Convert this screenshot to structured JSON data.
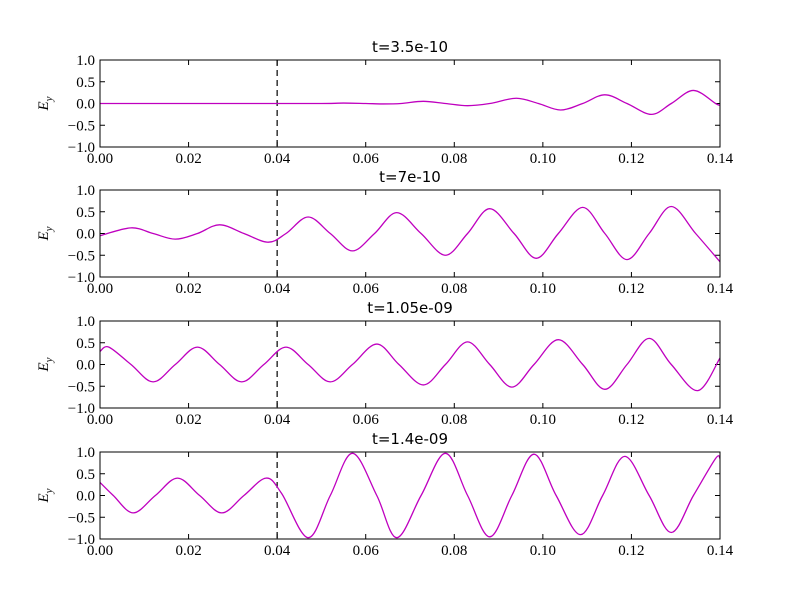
{
  "chart_data": [
    {
      "type": "line",
      "title": "t=3.5e-10",
      "ylabel": {
        "base": "E",
        "sub": "y"
      },
      "color": "#bf00bf",
      "vline": 0.04,
      "xlim": [
        0,
        0.14
      ],
      "ylim": [
        -1,
        1
      ],
      "xticks": [
        {
          "value": 0,
          "label": "0.00"
        },
        {
          "value": 0.02,
          "label": "0.02"
        },
        {
          "value": 0.04,
          "label": "0.04"
        },
        {
          "value": 0.06,
          "label": "0.06"
        },
        {
          "value": 0.08,
          "label": "0.08"
        },
        {
          "value": 0.1,
          "label": "0.10"
        },
        {
          "value": 0.12,
          "label": "0.12"
        },
        {
          "value": 0.14,
          "label": "0.14"
        }
      ],
      "yticks": [
        {
          "value": -1,
          "label": "−1.0"
        },
        {
          "value": -0.5,
          "label": "−0.5"
        },
        {
          "value": 0,
          "label": "0.0"
        },
        {
          "value": 0.5,
          "label": "0.5"
        },
        {
          "value": 1,
          "label": "1.0"
        }
      ],
      "x": [
        0,
        0.03,
        0.05,
        0.055,
        0.06,
        0.064,
        0.068,
        0.073,
        0.078,
        0.083,
        0.088,
        0.094,
        0.099,
        0.104,
        0.109,
        0.114,
        0.119,
        0.1245,
        0.129,
        0.134,
        0.139,
        0.14
      ],
      "values": [
        0,
        0,
        0,
        0.01,
        0,
        -0.01,
        0,
        0.05,
        0,
        -0.05,
        0,
        0.12,
        0,
        -0.15,
        0,
        0.2,
        0,
        -0.25,
        0,
        0.3,
        0,
        -0.04
      ]
    },
    {
      "type": "line",
      "title": "t=7e-10",
      "ylabel": {
        "base": "E",
        "sub": "y"
      },
      "color": "#bf00bf",
      "vline": 0.04,
      "xlim": [
        0,
        0.14
      ],
      "ylim": [
        -1,
        1
      ],
      "xticks": [
        {
          "value": 0,
          "label": "0.00"
        },
        {
          "value": 0.02,
          "label": "0.02"
        },
        {
          "value": 0.04,
          "label": "0.04"
        },
        {
          "value": 0.06,
          "label": "0.06"
        },
        {
          "value": 0.08,
          "label": "0.08"
        },
        {
          "value": 0.1,
          "label": "0.10"
        },
        {
          "value": 0.12,
          "label": "0.12"
        },
        {
          "value": 0.14,
          "label": "0.14"
        }
      ],
      "yticks": [
        {
          "value": -1,
          "label": "−1.0"
        },
        {
          "value": -0.5,
          "label": "−0.5"
        },
        {
          "value": 0,
          "label": "0.0"
        },
        {
          "value": 0.5,
          "label": "0.5"
        },
        {
          "value": 1,
          "label": "1.0"
        }
      ],
      "x": [
        0,
        0.007,
        0.012,
        0.017,
        0.022,
        0.027,
        0.0325,
        0.038,
        0.042,
        0.047,
        0.052,
        0.057,
        0.062,
        0.067,
        0.0725,
        0.078,
        0.083,
        0.088,
        0.0935,
        0.0985,
        0.1035,
        0.109,
        0.114,
        0.119,
        0.124,
        0.129,
        0.1345,
        0.14
      ],
      "values": [
        -0.05,
        0.13,
        0,
        -0.13,
        0,
        0.2,
        0,
        -0.2,
        0,
        0.38,
        0,
        -0.4,
        0,
        0.48,
        0,
        -0.5,
        0,
        0.57,
        0,
        -0.57,
        0,
        0.6,
        0,
        -0.6,
        0,
        0.62,
        0,
        -0.65
      ]
    },
    {
      "type": "line",
      "title": "t=1.05e-09",
      "ylabel": {
        "base": "E",
        "sub": "y"
      },
      "color": "#bf00bf",
      "vline": 0.04,
      "xlim": [
        0,
        0.14
      ],
      "ylim": [
        -1,
        1
      ],
      "xticks": [
        {
          "value": 0,
          "label": "0.00"
        },
        {
          "value": 0.02,
          "label": "0.02"
        },
        {
          "value": 0.04,
          "label": "0.04"
        },
        {
          "value": 0.06,
          "label": "0.06"
        },
        {
          "value": 0.08,
          "label": "0.08"
        },
        {
          "value": 0.1,
          "label": "0.10"
        },
        {
          "value": 0.12,
          "label": "0.12"
        },
        {
          "value": 0.14,
          "label": "0.14"
        }
      ],
      "yticks": [
        {
          "value": -1,
          "label": "−1.0"
        },
        {
          "value": -0.5,
          "label": "−0.5"
        },
        {
          "value": 0,
          "label": "0.0"
        },
        {
          "value": 0.5,
          "label": "0.5"
        },
        {
          "value": 1,
          "label": "1.0"
        }
      ],
      "x": [
        0,
        0.002,
        0.007,
        0.012,
        0.017,
        0.022,
        0.027,
        0.032,
        0.037,
        0.042,
        0.047,
        0.052,
        0.057,
        0.0625,
        0.0675,
        0.073,
        0.078,
        0.083,
        0.088,
        0.093,
        0.098,
        0.1035,
        0.109,
        0.114,
        0.119,
        0.124,
        0.129,
        0.135,
        0.14
      ],
      "values": [
        0.3,
        0.4,
        0,
        -0.4,
        0,
        0.4,
        0,
        -0.4,
        0,
        0.4,
        0,
        -0.4,
        0,
        0.47,
        0,
        -0.47,
        0,
        0.52,
        0,
        -0.52,
        0,
        0.57,
        0,
        -0.57,
        0,
        0.6,
        0,
        -0.6,
        0.15
      ]
    },
    {
      "type": "line",
      "title": "t=1.4e-09",
      "ylabel": {
        "base": "E",
        "sub": "y"
      },
      "color": "#bf00bf",
      "vline": 0.04,
      "xlim": [
        0,
        0.14
      ],
      "ylim": [
        -1,
        1
      ],
      "xticks": [
        {
          "value": 0,
          "label": "0.00"
        },
        {
          "value": 0.02,
          "label": "0.02"
        },
        {
          "value": 0.04,
          "label": "0.04"
        },
        {
          "value": 0.06,
          "label": "0.06"
        },
        {
          "value": 0.08,
          "label": "0.08"
        },
        {
          "value": 0.1,
          "label": "0.10"
        },
        {
          "value": 0.12,
          "label": "0.12"
        },
        {
          "value": 0.14,
          "label": "0.14"
        }
      ],
      "yticks": [
        {
          "value": -1,
          "label": "−1.0"
        },
        {
          "value": -0.5,
          "label": "−0.5"
        },
        {
          "value": 0,
          "label": "0.0"
        },
        {
          "value": 0.5,
          "label": "0.5"
        },
        {
          "value": 1,
          "label": "1.0"
        }
      ],
      "x": [
        0,
        0.003,
        0.0075,
        0.0125,
        0.0175,
        0.0225,
        0.0275,
        0.0325,
        0.0375,
        0.041,
        0.047,
        0.052,
        0.057,
        0.0625,
        0.067,
        0.0725,
        0.078,
        0.083,
        0.088,
        0.093,
        0.098,
        0.103,
        0.1085,
        0.1135,
        0.1185,
        0.124,
        0.129,
        0.134,
        0.139,
        0.14
      ],
      "values": [
        0.3,
        0,
        -0.4,
        0,
        0.4,
        0,
        -0.4,
        0,
        0.4,
        0.05,
        -0.97,
        0,
        0.97,
        0,
        -0.97,
        0,
        0.97,
        0,
        -0.95,
        0,
        0.95,
        0,
        -0.9,
        0,
        0.9,
        0,
        -0.85,
        0,
        0.85,
        0.85
      ]
    }
  ]
}
